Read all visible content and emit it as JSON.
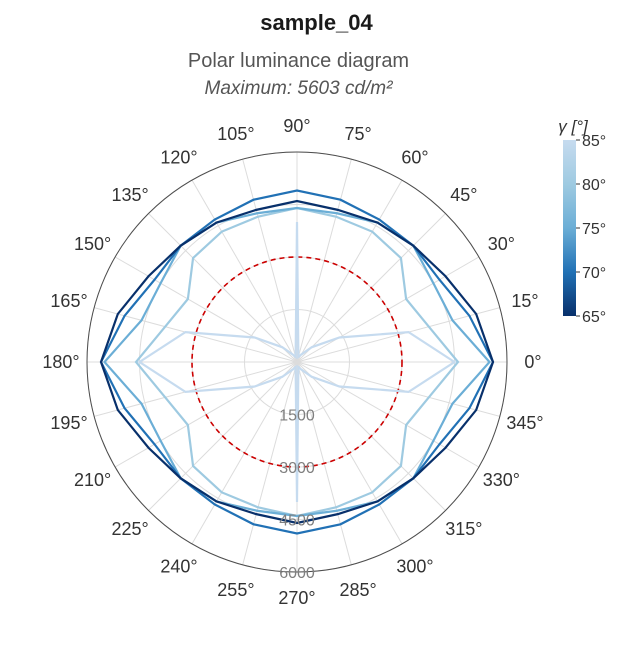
{
  "chart_data": {
    "type": "polar-line",
    "title": "sample_04",
    "subtitle": "Polar luminance diagram",
    "max_label": "Maximum: 5603 cd/m²",
    "radial_ticks": [
      1500,
      3000,
      4500,
      6000
    ],
    "radial_tick_labels": [
      "1500",
      "3000",
      "4500",
      "6000"
    ],
    "r_max": 6000,
    "angle_ticks": [
      0,
      15,
      30,
      45,
      60,
      75,
      90,
      105,
      120,
      135,
      150,
      165,
      180,
      195,
      210,
      225,
      240,
      255,
      270,
      285,
      300,
      315,
      330,
      345
    ],
    "angle_tick_labels": [
      "0°",
      "15°",
      "30°",
      "45°",
      "60°",
      "75°",
      "90°",
      "105°",
      "120°",
      "135°",
      "150°",
      "165°",
      "180°",
      "195°",
      "210°",
      "225°",
      "240°",
      "255°",
      "270°",
      "285°",
      "300°",
      "315°",
      "330°",
      "345°"
    ],
    "reference_circle": {
      "r": 3000,
      "color": "#cc0000",
      "style": "dashed"
    },
    "series": [
      {
        "gamma": 85,
        "color": "#c6dbef",
        "values": [
          4500,
          3300,
          1400,
          600,
          250,
          150,
          4000,
          150,
          250,
          600,
          1400,
          3300,
          4500,
          3300,
          1400,
          600,
          250,
          150,
          4000,
          150,
          250,
          600,
          1400,
          3300
        ]
      },
      {
        "gamma": 80,
        "color": "#9ecae1",
        "values": [
          4600,
          3900,
          3600,
          4200,
          4300,
          4300,
          4400,
          4300,
          4300,
          4200,
          3600,
          3900,
          4600,
          3900,
          3600,
          4200,
          4300,
          4300,
          4400,
          4300,
          4300,
          4200,
          3600,
          3900
        ]
      },
      {
        "gamma": 75,
        "color": "#6baed6",
        "values": [
          5500,
          4600,
          4500,
          4700,
          4600,
          4400,
          4400,
          4400,
          4600,
          4700,
          4500,
          4600,
          5500,
          4600,
          4500,
          4700,
          4600,
          4400,
          4400,
          4400,
          4600,
          4700,
          4500,
          4600
        ]
      },
      {
        "gamma": 70,
        "color": "#2171b5",
        "values": [
          5600,
          5100,
          4700,
          4700,
          4700,
          4800,
          4900,
          4800,
          4700,
          4700,
          4700,
          5100,
          5600,
          5100,
          4700,
          4700,
          4700,
          4800,
          4900,
          4800,
          4700,
          4700,
          4700,
          5100
        ]
      },
      {
        "gamma": 65,
        "color": "#08306b",
        "values": [
          5600,
          5300,
          4900,
          4700,
          4600,
          4500,
          4600,
          4500,
          4600,
          4700,
          4900,
          5300,
          5600,
          5300,
          4900,
          4700,
          4600,
          4500,
          4600,
          4500,
          4600,
          4700,
          4900,
          5300
        ]
      }
    ],
    "colorbar": {
      "title": "γ [°]",
      "min": 65,
      "max": 85,
      "ticks": [
        85,
        80,
        75,
        70,
        65
      ],
      "tick_labels": [
        "85°",
        "80°",
        "75°",
        "70°",
        "65°"
      ],
      "colors": [
        "#08306b",
        "#2171b5",
        "#6baed6",
        "#9ecae1",
        "#c6dbef"
      ]
    }
  }
}
